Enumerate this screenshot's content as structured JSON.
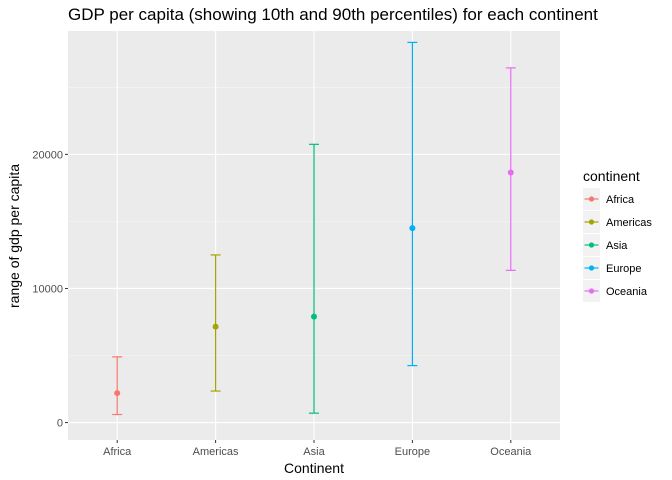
{
  "chart_data": {
    "type": "errorbar",
    "title": "GDP per capita (showing 10th and 90th percentiles) for each continent",
    "xlabel": "Continent",
    "ylabel": "range of gdp per capita",
    "categories": [
      "Africa",
      "Americas",
      "Asia",
      "Europe",
      "Oceania"
    ],
    "ylim": [
      -1300,
      29200
    ],
    "yticks": [
      0,
      10000,
      20000
    ],
    "ytick_labels": [
      "0",
      "10000",
      "20000"
    ],
    "grid": true,
    "legend": {
      "title": "continent",
      "placement": "right"
    },
    "series": [
      {
        "name": "Africa",
        "low": 600,
        "mid": 2200,
        "high": 4900,
        "color": "#F8766D"
      },
      {
        "name": "Americas",
        "low": 2350,
        "mid": 7150,
        "high": 12500,
        "color": "#A3A500"
      },
      {
        "name": "Asia",
        "low": 700,
        "mid": 7900,
        "high": 20750,
        "color": "#00BF7D"
      },
      {
        "name": "Europe",
        "low": 4250,
        "mid": 14500,
        "high": 28350,
        "color": "#00B0F6"
      },
      {
        "name": "Oceania",
        "low": 11350,
        "mid": 18650,
        "high": 26450,
        "color": "#E76BF3"
      }
    ]
  }
}
